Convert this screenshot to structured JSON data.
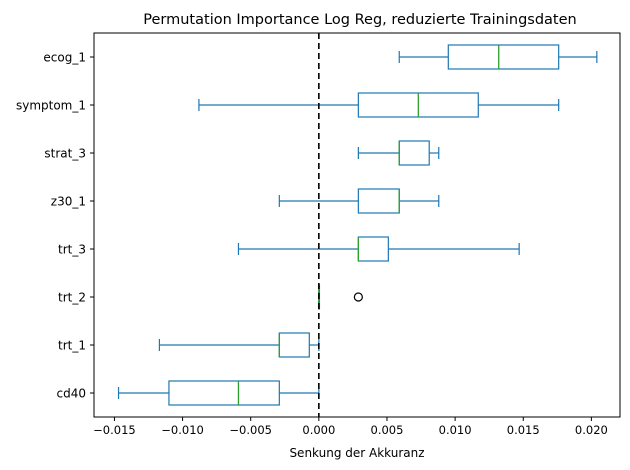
{
  "chart_data": {
    "type": "boxplot",
    "orientation": "horizontal",
    "title": "Permutation Importance Log Reg, reduzierte Trainingsdaten",
    "xlabel": "Senkung der Akkuranz",
    "ylabel": "",
    "xlim": [
      -0.0165,
      0.0221
    ],
    "xticks": [
      -0.015,
      -0.01,
      -0.005,
      0.0,
      0.005,
      0.01,
      0.015,
      0.02
    ],
    "xtick_labels": [
      "−0.015",
      "−0.010",
      "−0.005",
      "0.000",
      "0.005",
      "0.010",
      "0.015",
      "0.020"
    ],
    "reference_line": {
      "x": 0.0,
      "style": "dashed",
      "color": "#000000"
    },
    "grid": false,
    "colors": {
      "box": "#1f77b4",
      "median": "#2ca02c",
      "flier": "#000000"
    },
    "categories": [
      "ecog_1",
      "symptom_1",
      "strat_3",
      "z30_1",
      "trt_3",
      "trt_2",
      "trt_1",
      "cd40"
    ],
    "boxes": [
      {
        "label": "ecog_1",
        "whisker_low": 0.0059,
        "q1": 0.0095,
        "median": 0.0132,
        "q3": 0.0176,
        "whisker_high": 0.0204,
        "fliers": []
      },
      {
        "label": "symptom_1",
        "whisker_low": -0.0088,
        "q1": 0.0029,
        "median": 0.0073,
        "q3": 0.0117,
        "whisker_high": 0.0176,
        "fliers": []
      },
      {
        "label": "strat_3",
        "whisker_low": 0.0029,
        "q1": 0.0059,
        "median": 0.0059,
        "q3": 0.0081,
        "whisker_high": 0.0088,
        "fliers": []
      },
      {
        "label": "z30_1",
        "whisker_low": -0.0029,
        "q1": 0.0029,
        "median": 0.0059,
        "q3": 0.0059,
        "whisker_high": 0.0088,
        "fliers": []
      },
      {
        "label": "trt_3",
        "whisker_low": -0.0059,
        "q1": 0.0029,
        "median": 0.0029,
        "q3": 0.0051,
        "whisker_high": 0.0147,
        "fliers": []
      },
      {
        "label": "trt_2",
        "whisker_low": 0.0,
        "q1": 0.0,
        "median": 0.0,
        "q3": 0.0,
        "whisker_high": 0.0,
        "fliers": [
          0.0029
        ]
      },
      {
        "label": "trt_1",
        "whisker_low": -0.0117,
        "q1": -0.0029,
        "median": -0.0029,
        "q3": -0.0007,
        "whisker_high": 0.0,
        "fliers": []
      },
      {
        "label": "cd40",
        "whisker_low": -0.0147,
        "q1": -0.011,
        "median": -0.0059,
        "q3": -0.0029,
        "whisker_high": 0.0,
        "fliers": []
      }
    ]
  }
}
